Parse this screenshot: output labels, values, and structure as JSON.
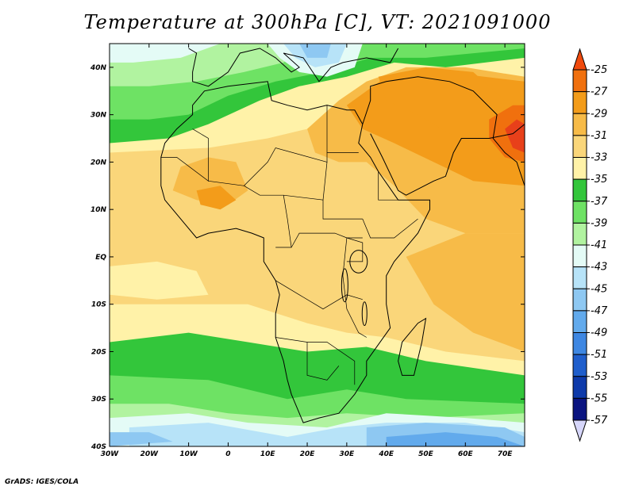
{
  "title": "Temperature at 300hPa [C], VT: 2021091000",
  "credit": "GrADS: IGES/COLA",
  "colors": {
    "c_m25": "#e8401a",
    "c_m27": "#f0700e",
    "c_m29": "#f39c1a",
    "c_m31": "#f7bb48",
    "c_m33": "#fad67a",
    "c_m35": "#fff2a8",
    "c_m37": "#33c63b",
    "c_m39": "#6ee264",
    "c_m41": "#b1f3a0",
    "c_m43": "#e4fbf6",
    "c_m45": "#b7e3f8",
    "c_m47": "#8ec8f2",
    "c_m49": "#62aaec",
    "c_m51": "#3e87e2",
    "c_m53": "#1f5ecc",
    "c_m55": "#0e3aaa",
    "c_m57": "#0a1480",
    "c_top": "#f04a0d",
    "c_bottom": "#d6d6fa"
  },
  "chart_data": {
    "type": "heatmap",
    "title": "Temperature at 300hPa [C], VT: 2021091000",
    "xlabel": "",
    "ylabel": "",
    "x_ticks": [
      "30W",
      "20W",
      "10W",
      "0",
      "10E",
      "20E",
      "30E",
      "40E",
      "50E",
      "60E",
      "70E"
    ],
    "y_ticks": [
      "40N",
      "30N",
      "20N",
      "10N",
      "EQ",
      "10S",
      "20S",
      "30S",
      "40S"
    ],
    "lon_range": [
      -30,
      75
    ],
    "lat_range": [
      -40,
      45
    ],
    "colorbar_labels": [
      "-25",
      "-27",
      "-29",
      "-31",
      "-33",
      "-35",
      "-37",
      "-39",
      "-41",
      "-43",
      "-45",
      "-47",
      "-49",
      "-51",
      "-53",
      "-55",
      "-57"
    ],
    "colorbar_colors": [
      "c_m25",
      "c_m27",
      "c_m29",
      "c_m31",
      "c_m33",
      "c_m35",
      "c_m37",
      "c_m39",
      "c_m41",
      "c_m43",
      "c_m45",
      "c_m47",
      "c_m49",
      "c_m51",
      "c_m53",
      "c_m55",
      "c_m57"
    ]
  }
}
